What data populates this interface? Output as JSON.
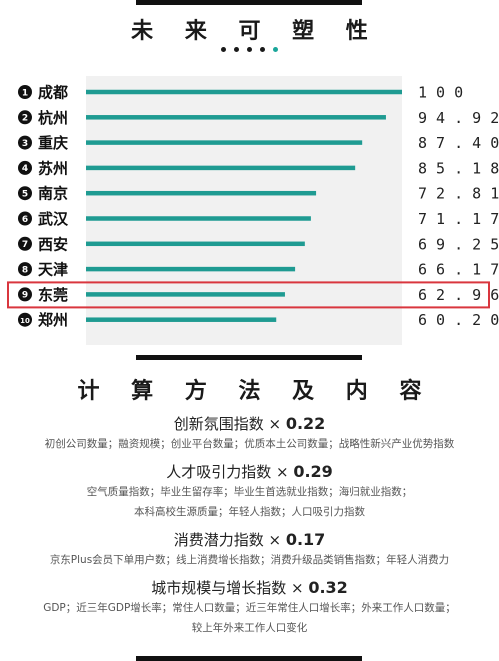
{
  "title": "未 来 可 塑 性",
  "page_dots": {
    "count": 5,
    "active_index": 4,
    "inactive_color": "#1a1a1a",
    "active_color": "#1aa69a"
  },
  "colors": {
    "bar": "#1f9b92",
    "panel": "#f1f1f1",
    "highlight": "#d9363e",
    "badge": "#111111"
  },
  "chart_data": {
    "type": "bar",
    "orientation": "horizontal",
    "title": "未来可塑性",
    "categories": [
      "成都",
      "杭州",
      "重庆",
      "苏州",
      "南京",
      "武汉",
      "西安",
      "天津",
      "东莞",
      "郑州"
    ],
    "ranks": [
      "1",
      "2",
      "3",
      "4",
      "5",
      "6",
      "7",
      "8",
      "9",
      "10"
    ],
    "values": [
      100,
      94.92,
      87.4,
      85.18,
      72.81,
      71.17,
      69.25,
      66.17,
      62.96,
      60.2
    ],
    "value_labels": [
      "1 0 0",
      "9 4 . 9 2",
      "8 7 . 4 0",
      "8 5 . 1 8",
      "7 2 . 8 1",
      "7 1 . 1 7",
      "6 9 . 2 5",
      "6 6 . 1 7",
      "6 2 . 9 6",
      "6 0 . 2 0"
    ],
    "xlim": [
      0,
      100
    ],
    "highlighted_category": "东莞",
    "grid": false,
    "legend": "none"
  },
  "method": {
    "title": "计 算 方 法 及 内 容",
    "times": "×",
    "items": [
      {
        "name": "创新氛围指数",
        "weight": "0.22",
        "lines": [
          "初创公司数量；融资规模；创业平台数量；优质本土公司数量；战略性新兴产业优势指数"
        ]
      },
      {
        "name": "人才吸引力指数",
        "weight": "0.29",
        "lines": [
          "空气质量指数；毕业生留存率；毕业生首选就业指数；海归就业指数；",
          "本科高校生源质量；年轻人指数；人口吸引力指数"
        ]
      },
      {
        "name": "消费潜力指数",
        "weight": "0.17",
        "lines": [
          "京东Plus会员下单用户数；线上消费增长指数；消费升级品类销售指数；年轻人消费力"
        ]
      },
      {
        "name": "城市规模与增长指数",
        "weight": "0.32",
        "lines": [
          "GDP；近三年GDP增长率；常住人口数量；近三年常住人口增长率；外来工作人口数量；",
          "较上年外来工作人口变化"
        ]
      }
    ]
  }
}
